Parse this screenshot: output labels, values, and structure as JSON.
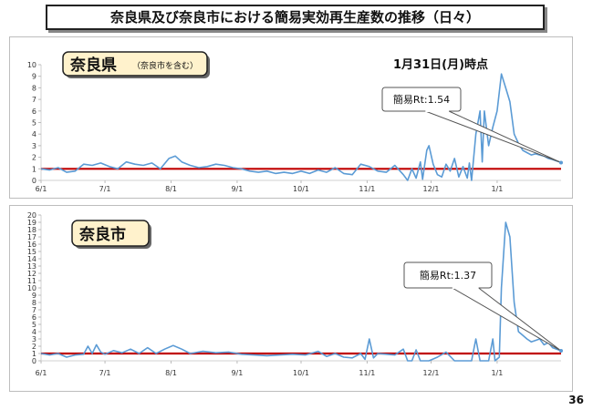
{
  "slide": {
    "title": "奈良県及び奈良市における簡易実効再生産数の推移（日々）",
    "page_number": "36"
  },
  "chart_data": [
    {
      "type": "line",
      "label": "奈良県",
      "label_note": "（奈良市を含む）",
      "annotation_date": "1月31日(月)時点",
      "callout": "簡易Rt:1.54",
      "x_tick_labels": [
        "6/1",
        "7/1",
        "8/1",
        "9/1",
        "10/1",
        "11/1",
        "12/1",
        "1/1"
      ],
      "ylim": [
        0,
        10
      ],
      "y_ticks": [
        0,
        1,
        2,
        3,
        4,
        5,
        6,
        7,
        8,
        9,
        10
      ],
      "reference_line": 1,
      "colors": {
        "series": "#5b9bd5",
        "reference": "#c00000"
      },
      "x_month_day_offsets": [
        0,
        30,
        61,
        92,
        122,
        153,
        183,
        214
      ],
      "end_day": 244,
      "points": [
        [
          0,
          1.0
        ],
        [
          4,
          0.9
        ],
        [
          8,
          1.1
        ],
        [
          12,
          0.7
        ],
        [
          16,
          0.8
        ],
        [
          20,
          1.4
        ],
        [
          24,
          1.3
        ],
        [
          28,
          1.5
        ],
        [
          32,
          1.2
        ],
        [
          36,
          1.0
        ],
        [
          40,
          1.6
        ],
        [
          44,
          1.4
        ],
        [
          48,
          1.3
        ],
        [
          52,
          1.5
        ],
        [
          56,
          1.0
        ],
        [
          60,
          1.9
        ],
        [
          63,
          2.1
        ],
        [
          66,
          1.6
        ],
        [
          70,
          1.3
        ],
        [
          74,
          1.1
        ],
        [
          78,
          1.2
        ],
        [
          82,
          1.4
        ],
        [
          86,
          1.3
        ],
        [
          90,
          1.1
        ],
        [
          94,
          1.0
        ],
        [
          98,
          0.8
        ],
        [
          102,
          0.7
        ],
        [
          106,
          0.8
        ],
        [
          110,
          0.6
        ],
        [
          114,
          0.7
        ],
        [
          118,
          0.6
        ],
        [
          122,
          0.8
        ],
        [
          126,
          0.6
        ],
        [
          130,
          0.9
        ],
        [
          134,
          0.7
        ],
        [
          138,
          1.1
        ],
        [
          142,
          0.6
        ],
        [
          146,
          0.5
        ],
        [
          150,
          1.4
        ],
        [
          154,
          1.2
        ],
        [
          158,
          0.8
        ],
        [
          162,
          0.7
        ],
        [
          166,
          1.3
        ],
        [
          170,
          0.5
        ],
        [
          172,
          0.0
        ],
        [
          174,
          1.0
        ],
        [
          176,
          0.2
        ],
        [
          178,
          1.6
        ],
        [
          179,
          0.1
        ],
        [
          181,
          2.6
        ],
        [
          182,
          3.0
        ],
        [
          184,
          1.4
        ],
        [
          186,
          0.5
        ],
        [
          188,
          0.3
        ],
        [
          190,
          1.4
        ],
        [
          192,
          0.8
        ],
        [
          194,
          1.9
        ],
        [
          196,
          0.3
        ],
        [
          198,
          1.2
        ],
        [
          200,
          0.2
        ],
        [
          201,
          1.5
        ],
        [
          202,
          0.0
        ],
        [
          204,
          4.0
        ],
        [
          206,
          6.0
        ],
        [
          207,
          1.6
        ],
        [
          208,
          6.0
        ],
        [
          210,
          3.0
        ],
        [
          212,
          4.6
        ],
        [
          214,
          6.0
        ],
        [
          216,
          9.2
        ],
        [
          218,
          8.0
        ],
        [
          220,
          6.8
        ],
        [
          222,
          4.0
        ],
        [
          224,
          3.2
        ],
        [
          226,
          2.6
        ],
        [
          228,
          2.4
        ],
        [
          230,
          2.2
        ],
        [
          232,
          2.3
        ],
        [
          234,
          2.2
        ],
        [
          236,
          2.1
        ],
        [
          238,
          1.9
        ],
        [
          240,
          1.8
        ],
        [
          244,
          1.54
        ]
      ]
    },
    {
      "type": "line",
      "label": "奈良市",
      "callout": "簡易Rt:1.37",
      "x_tick_labels": [
        "6/1",
        "7/1",
        "8/1",
        "9/1",
        "10/1",
        "11/1",
        "12/1",
        "1/1"
      ],
      "ylim": [
        0,
        20
      ],
      "y_ticks": [
        0,
        1,
        2,
        3,
        4,
        5,
        6,
        7,
        8,
        9,
        10,
        11,
        12,
        13,
        14,
        15,
        16,
        17,
        18,
        19,
        20
      ],
      "reference_line": 1,
      "colors": {
        "series": "#5b9bd5",
        "reference": "#c00000"
      },
      "x_month_day_offsets": [
        0,
        30,
        61,
        92,
        122,
        153,
        183,
        214
      ],
      "end_day": 244,
      "points": [
        [
          0,
          1.0
        ],
        [
          4,
          0.8
        ],
        [
          8,
          1.0
        ],
        [
          12,
          0.5
        ],
        [
          16,
          0.8
        ],
        [
          20,
          0.9
        ],
        [
          22,
          2.0
        ],
        [
          24,
          1.0
        ],
        [
          26,
          2.2
        ],
        [
          28,
          1.2
        ],
        [
          30,
          0.9
        ],
        [
          34,
          1.4
        ],
        [
          38,
          1.1
        ],
        [
          42,
          1.6
        ],
        [
          46,
          1.0
        ],
        [
          50,
          1.8
        ],
        [
          54,
          1.0
        ],
        [
          58,
          1.6
        ],
        [
          62,
          2.1
        ],
        [
          66,
          1.6
        ],
        [
          70,
          1.0
        ],
        [
          76,
          1.3
        ],
        [
          82,
          1.1
        ],
        [
          88,
          1.2
        ],
        [
          94,
          0.9
        ],
        [
          100,
          0.8
        ],
        [
          106,
          0.7
        ],
        [
          112,
          0.8
        ],
        [
          118,
          0.9
        ],
        [
          124,
          0.8
        ],
        [
          130,
          1.3
        ],
        [
          134,
          0.6
        ],
        [
          138,
          1.0
        ],
        [
          142,
          0.5
        ],
        [
          146,
          0.4
        ],
        [
          150,
          1.0
        ],
        [
          152,
          0.2
        ],
        [
          154,
          3.0
        ],
        [
          156,
          0.4
        ],
        [
          158,
          1.0
        ],
        [
          162,
          0.9
        ],
        [
          166,
          0.8
        ],
        [
          170,
          1.6
        ],
        [
          172,
          0.0
        ],
        [
          174,
          0.0
        ],
        [
          176,
          1.5
        ],
        [
          178,
          0.0
        ],
        [
          182,
          0.0
        ],
        [
          186,
          0.5
        ],
        [
          190,
          1.2
        ],
        [
          194,
          0.0
        ],
        [
          198,
          0.0
        ],
        [
          202,
          0.0
        ],
        [
          204,
          3.0
        ],
        [
          206,
          0.0
        ],
        [
          210,
          0.0
        ],
        [
          212,
          3.0
        ],
        [
          213,
          0.0
        ],
        [
          215,
          0.5
        ],
        [
          216,
          10.0
        ],
        [
          218,
          19.0
        ],
        [
          220,
          17.0
        ],
        [
          222,
          8.0
        ],
        [
          224,
          4.0
        ],
        [
          226,
          3.5
        ],
        [
          228,
          3.0
        ],
        [
          230,
          2.6
        ],
        [
          232,
          2.8
        ],
        [
          234,
          3.0
        ],
        [
          236,
          2.2
        ],
        [
          238,
          2.5
        ],
        [
          240,
          1.8
        ],
        [
          244,
          1.37
        ]
      ]
    }
  ],
  "icons": {
    "slide-title-frame": "rounded-frame",
    "label-frame": "rounded-frame"
  }
}
